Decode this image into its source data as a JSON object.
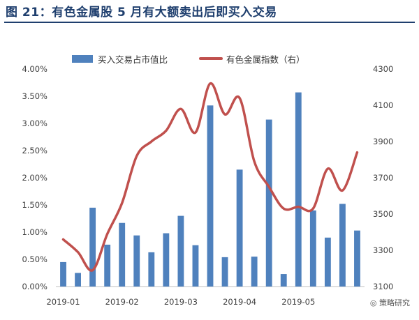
{
  "title": "图 21：有色金属股 5 月有大额卖出后即买入交易",
  "watermark": "策略研究",
  "colors": {
    "bar": "#4f81bd",
    "line": "#c0504d",
    "title": "#1f3f6e",
    "axis": "#bfbfbf"
  },
  "chart_data": {
    "type": "bar+line",
    "x_ticks": [
      "2019-01",
      "2019-02",
      "2019-03",
      "2019-04",
      "2019-05"
    ],
    "y_left": {
      "min": 0,
      "max": 4.0,
      "step": 0.5,
      "tick_labels": [
        "0.00%",
        "0.50%",
        "1.00%",
        "1.50%",
        "2.00%",
        "2.50%",
        "3.00%",
        "3.50%",
        "4.00%"
      ]
    },
    "y_right": {
      "min": 3100,
      "max": 4300,
      "step": 200,
      "tick_labels": [
        "3100",
        "3300",
        "3500",
        "3700",
        "3900",
        "4100",
        "4300"
      ]
    },
    "series": [
      {
        "name": "买入交易占市值比",
        "type": "bar",
        "axis": "left",
        "unit": "%",
        "values": [
          0.45,
          0.25,
          1.45,
          0.77,
          1.17,
          0.94,
          0.63,
          0.98,
          1.3,
          0.76,
          3.33,
          0.54,
          2.15,
          0.55,
          3.07,
          0.23,
          3.57,
          1.4,
          0.9,
          1.52,
          1.03
        ]
      },
      {
        "name": "有色金属指数（右）",
        "type": "line",
        "axis": "right",
        "points": [
          3360,
          3290,
          3190,
          3390,
          3560,
          3820,
          3900,
          3960,
          4080,
          3950,
          4220,
          4050,
          4140,
          3790,
          3650,
          3530,
          3540,
          3530,
          3750,
          3630,
          3840
        ]
      }
    ]
  }
}
